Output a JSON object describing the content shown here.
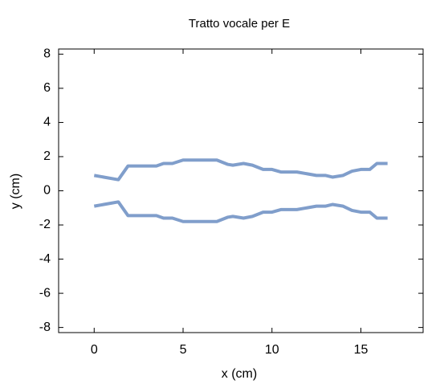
{
  "chart_data": {
    "type": "line",
    "title": "Tratto vocale per E",
    "x_label": "x (cm)",
    "y_label": "y (cm)",
    "x": [
      0,
      0.54,
      1.36,
      1.9,
      3.5,
      3.9,
      4.4,
      5,
      6.9,
      7.5,
      7.8,
      8.4,
      8.9,
      9.5,
      10,
      10.5,
      11.4,
      12.5,
      13,
      13.4,
      14,
      14.5,
      15,
      15.5,
      15.9,
      16.5
    ],
    "series": [
      {
        "color": "#809ecb",
        "values": [
          0.9,
          0.8,
          0.65,
          1.45,
          1.45,
          1.6,
          1.6,
          1.8,
          1.8,
          1.55,
          1.5,
          1.6,
          1.5,
          1.25,
          1.25,
          1.1,
          1.1,
          0.9,
          0.9,
          0.8,
          0.9,
          1.15,
          1.25,
          1.25,
          1.6,
          1.6
        ]
      },
      {
        "color": "#809ecb",
        "values": [
          -0.9,
          -0.8,
          -0.65,
          -1.45,
          -1.45,
          -1.6,
          -1.6,
          -1.8,
          -1.8,
          -1.55,
          -1.5,
          -1.6,
          -1.5,
          -1.25,
          -1.25,
          -1.1,
          -1.1,
          -0.9,
          -0.9,
          -0.8,
          -0.9,
          -1.15,
          -1.25,
          -1.25,
          -1.6,
          -1.6
        ]
      }
    ],
    "xlim": [
      -2,
      18.5
    ],
    "xticks": [
      0,
      5,
      10,
      15
    ],
    "ylim": [
      -8.3,
      8.3
    ],
    "yticks": [
      -8,
      -6,
      -4,
      -2,
      0,
      2,
      4,
      6,
      8
    ]
  }
}
